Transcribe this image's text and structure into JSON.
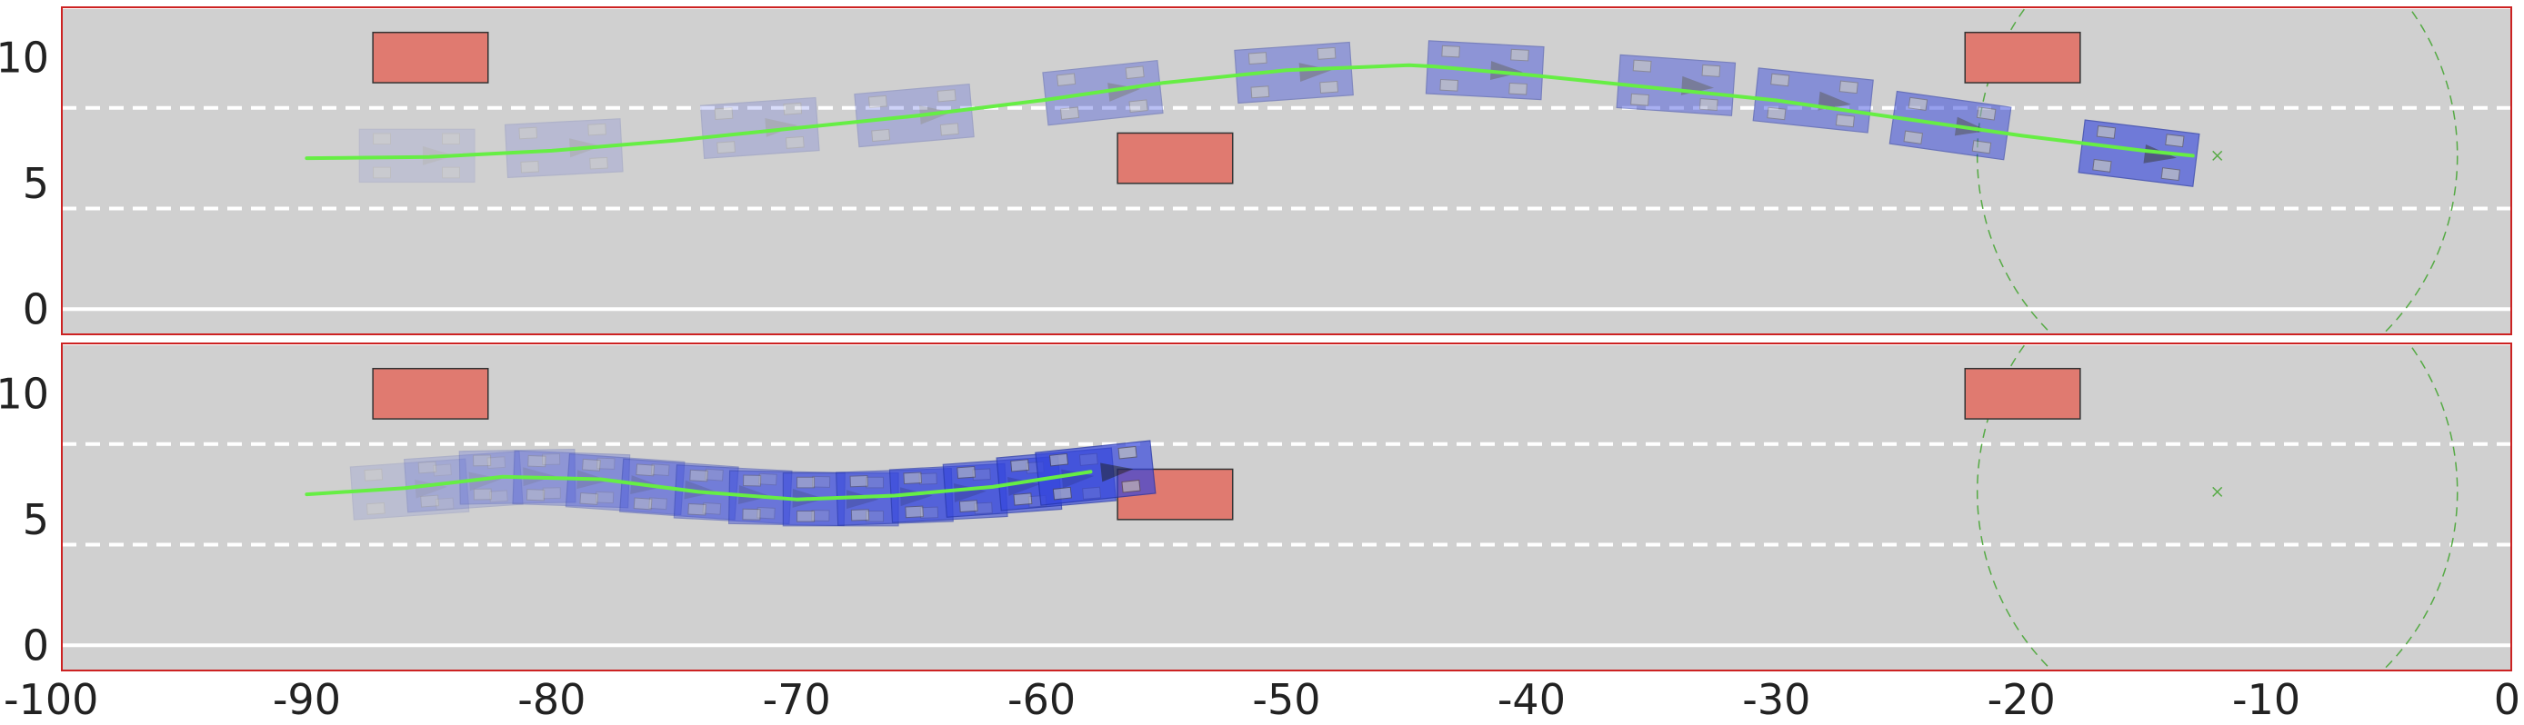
{
  "chart_data": [
    {
      "type": "scatter",
      "panel": "top",
      "xlim": [
        -100,
        0
      ],
      "ylim": [
        -1,
        12
      ],
      "yticks": [
        0,
        5,
        10
      ],
      "ytick_labels": [
        "0",
        "5",
        "10"
      ],
      "lane_solid_y": [
        0,
        12
      ],
      "lane_dashed_y": [
        4,
        8
      ],
      "obstacles": [
        {
          "x": [
            -87.3,
            -82.6
          ],
          "y": [
            9.0,
            11.0
          ]
        },
        {
          "x": [
            -56.9,
            -52.2
          ],
          "y": [
            5.0,
            7.0
          ]
        },
        {
          "x": [
            -22.3,
            -17.6
          ],
          "y": [
            9.0,
            11.0
          ]
        }
      ],
      "path": {
        "color": "#66ee44",
        "x": [
          -90,
          -85,
          -80,
          -75,
          -70,
          -65,
          -60,
          -55,
          -50,
          -45,
          -44,
          -40,
          -35,
          -30,
          -25,
          -20,
          -15,
          -13
        ],
        "y": [
          6.0,
          6.05,
          6.3,
          6.7,
          7.2,
          7.7,
          8.3,
          9.0,
          9.5,
          9.7,
          9.65,
          9.3,
          8.8,
          8.3,
          7.6,
          6.9,
          6.3,
          6.1
        ]
      },
      "vehicles": [
        {
          "x": -85.5,
          "y": 6.1,
          "heading_deg": 0,
          "opacity": 0.12
        },
        {
          "x": -79.5,
          "y": 6.4,
          "heading_deg": 3,
          "opacity": 0.18
        },
        {
          "x": -71.5,
          "y": 7.2,
          "heading_deg": 4,
          "opacity": 0.22
        },
        {
          "x": -65.2,
          "y": 7.7,
          "heading_deg": 5,
          "opacity": 0.28
        },
        {
          "x": -57.5,
          "y": 8.6,
          "heading_deg": 6,
          "opacity": 0.4
        },
        {
          "x": -49.7,
          "y": 9.4,
          "heading_deg": 4,
          "opacity": 0.45
        },
        {
          "x": -41.9,
          "y": 9.5,
          "heading_deg": -3,
          "opacity": 0.5
        },
        {
          "x": -34.1,
          "y": 8.9,
          "heading_deg": -4,
          "opacity": 0.5
        },
        {
          "x": -28.5,
          "y": 8.3,
          "heading_deg": -6,
          "opacity": 0.55
        },
        {
          "x": -22.9,
          "y": 7.3,
          "heading_deg": -8,
          "opacity": 0.6
        },
        {
          "x": -15.2,
          "y": 6.2,
          "heading_deg": -7,
          "opacity": 0.72
        }
      ],
      "goal": {
        "x": -12,
        "y": 6.1,
        "radius": 9.8
      }
    },
    {
      "type": "scatter",
      "panel": "bottom",
      "xlim": [
        -100,
        0
      ],
      "ylim": [
        -1,
        12
      ],
      "yticks": [
        0,
        5,
        10
      ],
      "ytick_labels": [
        "0",
        "5",
        "10"
      ],
      "lane_solid_y": [
        0,
        12
      ],
      "lane_dashed_y": [
        4,
        8
      ],
      "obstacles": [
        {
          "x": [
            -87.3,
            -82.6
          ],
          "y": [
            9.0,
            11.0
          ]
        },
        {
          "x": [
            -56.9,
            -52.2
          ],
          "y": [
            5.0,
            7.0
          ]
        },
        {
          "x": [
            -22.3,
            -17.6
          ],
          "y": [
            9.0,
            11.0
          ]
        }
      ],
      "path": {
        "color": "#66ee44",
        "x": [
          -90,
          -86,
          -82,
          -78,
          -74,
          -70,
          -66,
          -62,
          -58
        ],
        "y": [
          6.0,
          6.25,
          6.7,
          6.6,
          6.1,
          5.8,
          5.95,
          6.3,
          6.9
        ]
      },
      "vehicles": [
        {
          "x": -85.8,
          "y": 6.2,
          "heading_deg": 4,
          "opacity": 0.15
        },
        {
          "x": -83.6,
          "y": 6.5,
          "heading_deg": 4,
          "opacity": 0.2
        },
        {
          "x": -81.4,
          "y": 6.7,
          "heading_deg": 1,
          "opacity": 0.25
        },
        {
          "x": -79.2,
          "y": 6.6,
          "heading_deg": -2,
          "opacity": 0.3
        },
        {
          "x": -77.0,
          "y": 6.4,
          "heading_deg": -4,
          "opacity": 0.35
        },
        {
          "x": -74.8,
          "y": 6.2,
          "heading_deg": -4,
          "opacity": 0.4
        },
        {
          "x": -72.6,
          "y": 6.0,
          "heading_deg": -3,
          "opacity": 0.45
        },
        {
          "x": -70.4,
          "y": 5.85,
          "heading_deg": -1,
          "opacity": 0.5
        },
        {
          "x": -68.2,
          "y": 5.8,
          "heading_deg": 0,
          "opacity": 0.55
        },
        {
          "x": -66.0,
          "y": 5.9,
          "heading_deg": 2,
          "opacity": 0.6
        },
        {
          "x": -63.8,
          "y": 6.05,
          "heading_deg": 3,
          "opacity": 0.65
        },
        {
          "x": -61.6,
          "y": 6.3,
          "heading_deg": 4,
          "opacity": 0.7
        },
        {
          "x": -59.4,
          "y": 6.6,
          "heading_deg": 5,
          "opacity": 0.75
        },
        {
          "x": -57.8,
          "y": 6.85,
          "heading_deg": 6,
          "opacity": 0.8
        }
      ],
      "goal": {
        "x": -12,
        "y": 6.1,
        "radius": 9.8
      }
    }
  ],
  "x_axis": {
    "ticks": [
      -100,
      -90,
      -80,
      -70,
      -60,
      -50,
      -40,
      -30,
      -20,
      -10,
      0
    ],
    "tick_labels": [
      "-100",
      "-90",
      "-80",
      "-70",
      "-60",
      "-50",
      "-40",
      "-30",
      "-20",
      "-10",
      "0"
    ]
  },
  "colors": {
    "road": "#d0d0d0",
    "frame": "#cc2222",
    "lane_line": "#ffffff",
    "obstacle_fill": "#e07a70",
    "obstacle_edge": "#333333",
    "vehicle": "#3344dd",
    "path": "#66ee44",
    "goal": "#55aa44"
  }
}
